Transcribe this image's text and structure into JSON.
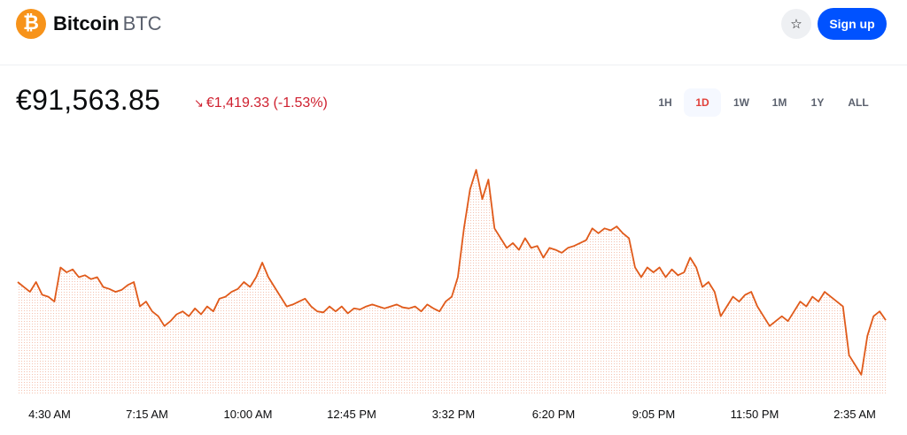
{
  "header": {
    "coin_name": "Bitcoin",
    "coin_ticker": "BTC",
    "logo_symbol": "₿",
    "logo_color": "#f7931a",
    "watchlist_icon": "star-icon",
    "signup_label": "Sign up",
    "signup_color": "#0052ff"
  },
  "price": {
    "current": "€91,563.85",
    "change_arrow": "↘",
    "change_text": "€1,419.33 (-1.53%)",
    "change_color": "#cf202f"
  },
  "ranges": [
    {
      "label": "1H",
      "active": false
    },
    {
      "label": "1D",
      "active": true
    },
    {
      "label": "1W",
      "active": false
    },
    {
      "label": "1M",
      "active": false
    },
    {
      "label": "1Y",
      "active": false
    },
    {
      "label": "ALL",
      "active": false
    }
  ],
  "chart_data": {
    "type": "area",
    "line_color": "#e05a1a",
    "grid": false,
    "x_tick_labels": [
      "4:30 AM",
      "7:15 AM",
      "10:00 AM",
      "12:45 PM",
      "3:32 PM",
      "6:20 PM",
      "9:05 PM",
      "11:50 PM",
      "2:35 AM"
    ],
    "values": [
      91950,
      91900,
      91850,
      91950,
      91820,
      91800,
      91750,
      92100,
      92050,
      92080,
      92000,
      92020,
      91980,
      92000,
      91900,
      91880,
      91850,
      91870,
      91920,
      91950,
      91700,
      91750,
      91650,
      91600,
      91500,
      91550,
      91620,
      91650,
      91600,
      91680,
      91620,
      91700,
      91650,
      91780,
      91800,
      91850,
      91880,
      91950,
      91900,
      92000,
      92150,
      92000,
      91900,
      91800,
      91700,
      91720,
      91750,
      91780,
      91700,
      91650,
      91640,
      91700,
      91650,
      91700,
      91630,
      91680,
      91670,
      91700,
      91720,
      91700,
      91680,
      91700,
      91720,
      91690,
      91680,
      91700,
      91650,
      91720,
      91680,
      91650,
      91750,
      91800,
      92000,
      92500,
      92900,
      93100,
      92800,
      93000,
      92500,
      92400,
      92300,
      92350,
      92280,
      92400,
      92300,
      92320,
      92200,
      92300,
      92280,
      92250,
      92300,
      92320,
      92350,
      92380,
      92500,
      92450,
      92500,
      92480,
      92520,
      92450,
      92400,
      92100,
      92000,
      92100,
      92050,
      92100,
      92000,
      92080,
      92020,
      92050,
      92200,
      92100,
      91900,
      91950,
      91850,
      91600,
      91700,
      91800,
      91750,
      91820,
      91850,
      91700,
      91600,
      91500,
      91550,
      91600,
      91550,
      91650,
      91750,
      91700,
      91800,
      91750,
      91850,
      91800,
      91750,
      91700,
      91200,
      91100,
      91000,
      91400,
      91600,
      91650,
      91560
    ],
    "y_range": [
      90800,
      93300
    ]
  }
}
